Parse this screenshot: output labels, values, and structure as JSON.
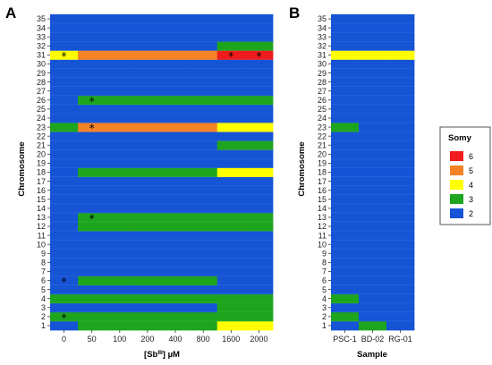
{
  "panel_labels": [
    "A",
    "B"
  ],
  "somy_colors": {
    "6": "#ee1c1c",
    "5": "#f58225",
    "4": "#ffff00",
    "3": "#1ea51e",
    "2": "#1654d6"
  },
  "legend": {
    "title": "Somy",
    "entries": [
      {
        "value": 6,
        "label": "6"
      },
      {
        "value": 5,
        "label": "5"
      },
      {
        "value": 4,
        "label": "4"
      },
      {
        "value": 3,
        "label": "3"
      },
      {
        "value": 2,
        "label": "2"
      }
    ]
  },
  "chart_data": [
    {
      "panel": "A",
      "type": "heatmap",
      "xlabel_parts": [
        "[Sb",
        "III",
        "] µM"
      ],
      "ylabel": "Chromosome",
      "x": [
        0,
        50,
        100,
        200,
        400,
        800,
        1600,
        2000
      ],
      "x_ticks": [
        0,
        50,
        100,
        200,
        400,
        800,
        1600,
        2000
      ],
      "y_ticks": [
        1,
        2,
        3,
        4,
        5,
        6,
        7,
        8,
        9,
        10,
        11,
        12,
        13,
        14,
        15,
        16,
        17,
        18,
        19,
        20,
        21,
        22,
        23,
        24,
        25,
        26,
        27,
        28,
        29,
        30,
        31,
        32,
        33,
        34,
        35
      ],
      "default_somy": 2,
      "overrides": {
        "1": [
          2,
          3,
          3,
          3,
          3,
          3,
          4,
          4
        ],
        "2": [
          3,
          3,
          3,
          3,
          3,
          3,
          3,
          3
        ],
        "3": [
          2,
          2,
          2,
          2,
          2,
          2,
          3,
          3
        ],
        "4": [
          3,
          3,
          3,
          3,
          3,
          3,
          3,
          3
        ],
        "6": [
          2,
          3,
          3,
          3,
          3,
          3,
          2,
          2
        ],
        "12": [
          2,
          3,
          3,
          3,
          3,
          3,
          3,
          3
        ],
        "13": [
          2,
          3,
          3,
          3,
          3,
          3,
          3,
          3
        ],
        "18": [
          2,
          3,
          3,
          3,
          3,
          3,
          4,
          4
        ],
        "21": [
          2,
          2,
          2,
          2,
          2,
          2,
          3,
          3
        ],
        "23": [
          3,
          5,
          5,
          5,
          5,
          5,
          4,
          4
        ],
        "26": [
          2,
          3,
          3,
          3,
          3,
          3,
          3,
          3
        ],
        "31": [
          4,
          5,
          5,
          5,
          5,
          5,
          6,
          6
        ],
        "32": [
          2,
          2,
          2,
          2,
          2,
          2,
          3,
          3
        ]
      },
      "asterisks": [
        {
          "chromosome": 31,
          "x": 0
        },
        {
          "chromosome": 31,
          "x": 1600
        },
        {
          "chromosome": 31,
          "x": 2000
        },
        {
          "chromosome": 26,
          "x": 50
        },
        {
          "chromosome": 23,
          "x": 50
        },
        {
          "chromosome": 13,
          "x": 50
        },
        {
          "chromosome": 6,
          "x": 0
        },
        {
          "chromosome": 2,
          "x": 0
        }
      ]
    },
    {
      "panel": "B",
      "type": "heatmap",
      "xlabel": "Sample",
      "ylabel": "Chromosome",
      "x": [
        "PSC-1",
        "BD-02",
        "RG-01"
      ],
      "y_ticks": [
        1,
        2,
        3,
        4,
        5,
        6,
        7,
        8,
        9,
        10,
        11,
        12,
        13,
        14,
        15,
        16,
        17,
        18,
        19,
        20,
        21,
        22,
        23,
        24,
        25,
        26,
        27,
        28,
        29,
        30,
        31,
        32,
        33,
        34,
        35
      ],
      "default_somy": 2,
      "overrides": {
        "1": [
          2,
          3,
          2
        ],
        "2": [
          3,
          2,
          2
        ],
        "4": [
          3,
          2,
          2
        ],
        "23": [
          3,
          2,
          2
        ],
        "31": [
          4,
          4,
          4
        ]
      }
    }
  ]
}
